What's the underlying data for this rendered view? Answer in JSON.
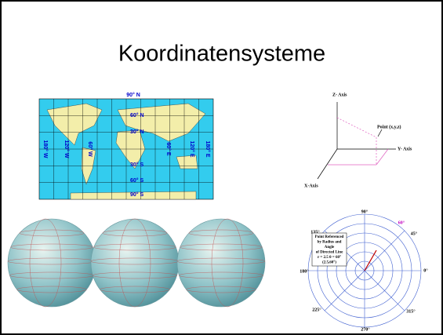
{
  "slide": {
    "title": "Koordinatensysteme",
    "map_labels": {
      "top": "90° N",
      "lat": [
        "60° N",
        "30° N",
        "30° S",
        "60° S",
        "90° S"
      ],
      "lon": [
        "180° W",
        "120° W",
        "60° W",
        "60° E",
        "120° E",
        "180° E"
      ]
    },
    "axes_labels": {
      "z": "Z- Axis",
      "point": "Point (x,y,z)",
      "y": "Y- Axis",
      "x": "X-Axis"
    },
    "polar_labels": {
      "angles": [
        "90°",
        "60°",
        "45°",
        "0°",
        "135°",
        "180°",
        "225°",
        "270°",
        "315°"
      ],
      "note": [
        "Point Referenced",
        "by Radius and",
        "Angle",
        "of Directed Line",
        "r = 2.5  θ = 60°",
        "(2.5,60°)"
      ]
    }
  }
}
